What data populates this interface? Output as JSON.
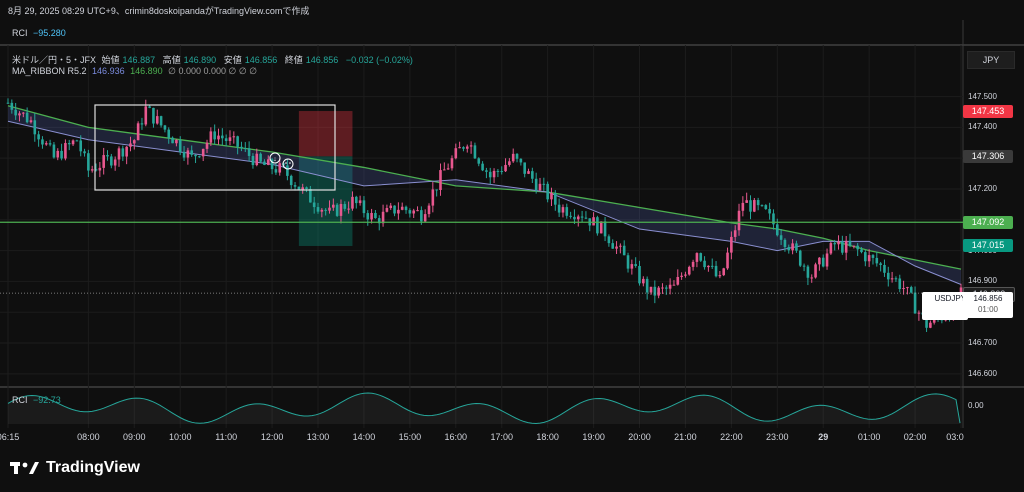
{
  "header": {
    "text": "8月 29, 2025 08:29 UTC+9、crimin8doskoipandaがTradingView.comで作成"
  },
  "indicator_top": {
    "name": "RCI",
    "value": "−95.280"
  },
  "legend": {
    "symbol": "米ドル／円・5・JFX",
    "o_label": "始値",
    "o": "146.887",
    "h_label": "高値",
    "h": "146.890",
    "l_label": "安値",
    "l": "146.856",
    "c_label": "終値",
    "c": "146.856",
    "chg": "−0.032 (−0.02%)",
    "ma_name": "MA_RIBBON R5.2",
    "ma_v1": "146.936",
    "ma_v2": "146.890",
    "ma_rest": "∅ 0.000 0.000 ∅ ∅ ∅"
  },
  "indicator_bottom": {
    "name": "RCI",
    "value": "−92.73",
    "axis_value": "0.00"
  },
  "currency": "JPY",
  "price_labels": [
    {
      "value": "147.453",
      "bg": "#f23645"
    },
    {
      "value": "147.306",
      "bg": "#3a3a3a"
    },
    {
      "value": "147.092",
      "bg": "#4caf50"
    },
    {
      "value": "147.015",
      "bg": "#089981"
    },
    {
      "value": "146.862",
      "bg": "#1e1e1e"
    }
  ],
  "current_price": {
    "symbol": "USDJPY",
    "value": "146.856",
    "countdown": "01:00"
  },
  "y_ticks": [
    "147.500",
    "147.400",
    "147.300",
    "147.200",
    "147.100",
    "147.000",
    "146.900",
    "146.800",
    "146.700",
    "146.600"
  ],
  "x_ticks": [
    "06:15",
    "08:00",
    "09:00",
    "10:00",
    "11:00",
    "12:00",
    "13:00",
    "14:00",
    "15:00",
    "16:00",
    "17:00",
    "18:00",
    "19:00",
    "20:00",
    "21:00",
    "22:00",
    "23:00",
    "29",
    "01:00",
    "02:00",
    "03:0"
  ],
  "brand": "TradingView",
  "colors": {
    "up": "#e8588f",
    "down": "#26a69a",
    "ma_slow": "#4caf50",
    "ma_fast": "#5b6cc8",
    "bg": "#0f0f0f"
  },
  "chart_data": {
    "type": "candlestick",
    "title": "米ドル／円・5・JFX",
    "ylim": [
      146.58,
      147.57
    ],
    "x_labels": [
      "06:15",
      "08:00",
      "09:00",
      "10:00",
      "11:00",
      "12:00",
      "13:00",
      "14:00",
      "15:00",
      "16:00",
      "17:00",
      "18:00",
      "19:00",
      "20:00",
      "21:00",
      "22:00",
      "23:00",
      "29",
      "01:00",
      "02:00",
      "03:0"
    ],
    "close_path": [
      {
        "t": "06:15",
        "v": 147.48
      },
      {
        "t": "06:45",
        "v": 147.42
      },
      {
        "t": "07:15",
        "v": 147.3
      },
      {
        "t": "07:45",
        "v": 147.36
      },
      {
        "t": "08:00",
        "v": 147.26
      },
      {
        "t": "08:30",
        "v": 147.3
      },
      {
        "t": "09:00",
        "v": 147.36
      },
      {
        "t": "09:15",
        "v": 147.46
      },
      {
        "t": "09:45",
        "v": 147.38
      },
      {
        "t": "10:15",
        "v": 147.3
      },
      {
        "t": "10:45",
        "v": 147.38
      },
      {
        "t": "11:15",
        "v": 147.34
      },
      {
        "t": "11:45",
        "v": 147.28
      },
      {
        "t": "12:15",
        "v": 147.26
      },
      {
        "t": "12:45",
        "v": 147.18
      },
      {
        "t": "13:15",
        "v": 147.12
      },
      {
        "t": "13:45",
        "v": 147.16
      },
      {
        "t": "14:15",
        "v": 147.1
      },
      {
        "t": "14:45",
        "v": 147.14
      },
      {
        "t": "15:15",
        "v": 147.12
      },
      {
        "t": "15:45",
        "v": 147.26
      },
      {
        "t": "16:15",
        "v": 147.36
      },
      {
        "t": "16:45",
        "v": 147.24
      },
      {
        "t": "17:15",
        "v": 147.3
      },
      {
        "t": "17:45",
        "v": 147.22
      },
      {
        "t": "18:15",
        "v": 147.14
      },
      {
        "t": "18:45",
        "v": 147.12
      },
      {
        "t": "19:15",
        "v": 147.06
      },
      {
        "t": "19:45",
        "v": 146.96
      },
      {
        "t": "20:15",
        "v": 146.86
      },
      {
        "t": "20:45",
        "v": 146.88
      },
      {
        "t": "21:15",
        "v": 147.0
      },
      {
        "t": "21:45",
        "v": 146.9
      },
      {
        "t": "22:15",
        "v": 147.16
      },
      {
        "t": "22:45",
        "v": 147.12
      },
      {
        "t": "23:15",
        "v": 147.02
      },
      {
        "t": "23:45",
        "v": 146.92
      },
      {
        "t": "00:15",
        "v": 147.02
      },
      {
        "t": "00:45",
        "v": 147.0
      },
      {
        "t": "01:15",
        "v": 146.95
      },
      {
        "t": "01:45",
        "v": 146.88
      },
      {
        "t": "02:15",
        "v": 146.76
      },
      {
        "t": "02:45",
        "v": 146.8
      },
      {
        "t": "03:00",
        "v": 146.856
      }
    ],
    "series": [
      {
        "name": "MA_RIBBON R5.2",
        "values": [
          {
            "t": "06:15",
            "v": 147.47
          },
          {
            "t": "08:00",
            "v": 147.4
          },
          {
            "t": "10:00",
            "v": 147.36
          },
          {
            "t": "12:00",
            "v": 147.32
          },
          {
            "t": "14:00",
            "v": 147.27
          },
          {
            "t": "16:00",
            "v": 147.21
          },
          {
            "t": "18:00",
            "v": 147.19
          },
          {
            "t": "20:00",
            "v": 147.14
          },
          {
            "t": "22:00",
            "v": 147.09
          },
          {
            "t": "23:00",
            "v": 147.07
          },
          {
            "t": "00:00",
            "v": 147.04
          },
          {
            "t": "01:00",
            "v": 147.0
          },
          {
            "t": "02:00",
            "v": 146.97
          },
          {
            "t": "03:00",
            "v": 146.94
          }
        ]
      },
      {
        "name": "",
        "values": [
          {
            "t": "06:15",
            "v": 147.42
          },
          {
            "t": "08:00",
            "v": 147.36
          },
          {
            "t": "10:00",
            "v": 147.32
          },
          {
            "t": "12:00",
            "v": 147.28
          },
          {
            "t": "14:00",
            "v": 147.21
          },
          {
            "t": "16:00",
            "v": 147.23
          },
          {
            "t": "18:00",
            "v": 147.19
          },
          {
            "t": "20:00",
            "v": 147.07
          },
          {
            "t": "22:00",
            "v": 147.03
          },
          {
            "t": "23:00",
            "v": 147.0
          },
          {
            "t": "00:00",
            "v": 147.03
          },
          {
            "t": "01:00",
            "v": 147.03
          },
          {
            "t": "02:00",
            "v": 146.95
          },
          {
            "t": "03:00",
            "v": 146.89
          }
        ]
      }
    ],
    "horizontal_lines": [
      147.092,
      146.862
    ],
    "rectangle_zone": {
      "from": "08:00",
      "to": "12:50",
      "top": 147.49,
      "bottom": 147.2
    },
    "position_tool": {
      "entry": 147.306,
      "stop": 147.453,
      "target": 147.015
    }
  }
}
